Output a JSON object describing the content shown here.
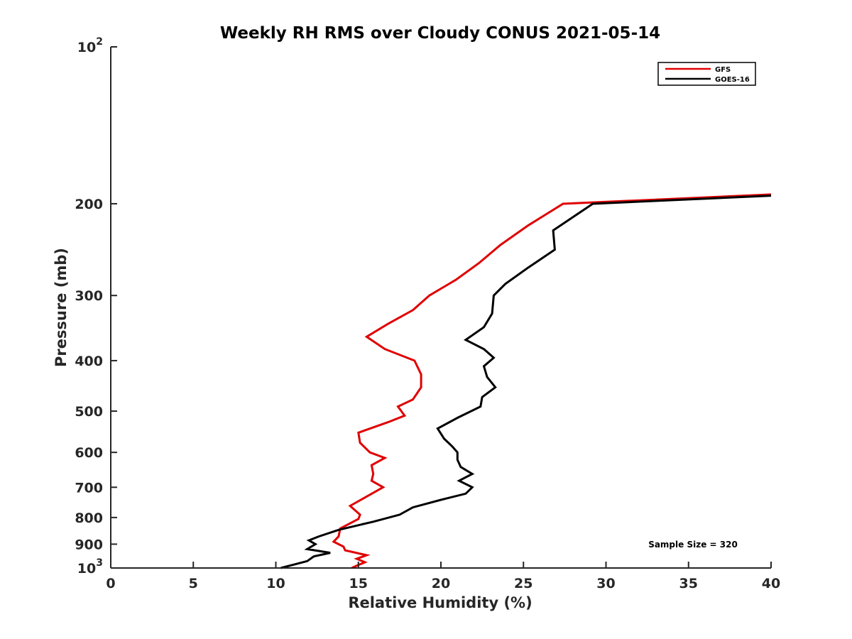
{
  "chart_data": {
    "type": "line",
    "title": "Weekly RH RMS over Cloudy CONUS 2021-05-14",
    "xlabel": "Relative Humidity (%)",
    "ylabel": "Pressure (mb)",
    "xlim": [
      0,
      40
    ],
    "ylim": [
      100,
      1000
    ],
    "y_scale": "log",
    "y_reversed": true,
    "grid": false,
    "legend_position": "top-right",
    "x_ticks": [
      {
        "value": 0,
        "label": "0"
      },
      {
        "value": 5,
        "label": "5"
      },
      {
        "value": 10,
        "label": "10"
      },
      {
        "value": 15,
        "label": "15"
      },
      {
        "value": 20,
        "label": "20"
      },
      {
        "value": 25,
        "label": "25"
      },
      {
        "value": 30,
        "label": "30"
      },
      {
        "value": 35,
        "label": "35"
      },
      {
        "value": 40,
        "label": "40"
      }
    ],
    "y_ticks": [
      {
        "value": 100,
        "base": "10",
        "exp": "2"
      },
      {
        "value": 200,
        "label": "200"
      },
      {
        "value": 300,
        "label": "300"
      },
      {
        "value": 400,
        "label": "400"
      },
      {
        "value": 500,
        "label": "500"
      },
      {
        "value": 600,
        "label": "600"
      },
      {
        "value": 700,
        "label": "700"
      },
      {
        "value": 800,
        "label": "800"
      },
      {
        "value": 900,
        "label": "900"
      },
      {
        "value": 1000,
        "base": "10",
        "exp": "3"
      }
    ],
    "annotation": "Sample Size = 320",
    "series": [
      {
        "name": "GFS",
        "color": "#e00000",
        "points": [
          [
            40.0,
            192
          ],
          [
            27.4,
            200
          ],
          [
            25.3,
            220
          ],
          [
            23.6,
            240
          ],
          [
            22.3,
            260
          ],
          [
            20.9,
            280
          ],
          [
            19.3,
            300
          ],
          [
            18.3,
            320
          ],
          [
            16.8,
            340
          ],
          [
            15.5,
            360
          ],
          [
            16.6,
            380
          ],
          [
            18.4,
            400
          ],
          [
            18.8,
            425
          ],
          [
            18.8,
            450
          ],
          [
            18.3,
            475
          ],
          [
            17.4,
            490
          ],
          [
            17.8,
            510
          ],
          [
            16.8,
            525
          ],
          [
            15.0,
            550
          ],
          [
            15.1,
            575
          ],
          [
            15.7,
            600
          ],
          [
            16.6,
            615
          ],
          [
            15.8,
            635
          ],
          [
            15.9,
            660
          ],
          [
            15.8,
            680
          ],
          [
            16.5,
            700
          ],
          [
            14.5,
            760
          ],
          [
            15.1,
            790
          ],
          [
            15.0,
            805
          ],
          [
            13.9,
            840
          ],
          [
            13.8,
            870
          ],
          [
            13.5,
            890
          ],
          [
            14.1,
            910
          ],
          [
            14.2,
            925
          ],
          [
            15.5,
            945
          ],
          [
            14.9,
            960
          ],
          [
            15.4,
            975
          ],
          [
            14.9,
            990
          ],
          [
            14.6,
            1000
          ]
        ]
      },
      {
        "name": "GOES-16",
        "color": "#000000",
        "points": [
          [
            40.0,
            193
          ],
          [
            29.2,
            200
          ],
          [
            26.8,
            225
          ],
          [
            26.9,
            245
          ],
          [
            25.3,
            265
          ],
          [
            23.9,
            285
          ],
          [
            23.2,
            300
          ],
          [
            23.1,
            325
          ],
          [
            22.6,
            345
          ],
          [
            21.5,
            365
          ],
          [
            22.6,
            380
          ],
          [
            23.2,
            395
          ],
          [
            22.6,
            410
          ],
          [
            22.8,
            430
          ],
          [
            23.3,
            450
          ],
          [
            22.5,
            470
          ],
          [
            22.4,
            490
          ],
          [
            21.0,
            515
          ],
          [
            19.8,
            540
          ],
          [
            20.2,
            565
          ],
          [
            20.7,
            585
          ],
          [
            21.0,
            600
          ],
          [
            21.0,
            620
          ],
          [
            21.2,
            640
          ],
          [
            21.9,
            660
          ],
          [
            21.1,
            680
          ],
          [
            21.9,
            700
          ],
          [
            21.5,
            720
          ],
          [
            20.0,
            740
          ],
          [
            18.3,
            765
          ],
          [
            17.5,
            790
          ],
          [
            15.9,
            815
          ],
          [
            13.8,
            845
          ],
          [
            12.6,
            870
          ],
          [
            12.0,
            885
          ],
          [
            12.4,
            900
          ],
          [
            11.9,
            920
          ],
          [
            13.3,
            935
          ],
          [
            12.3,
            950
          ],
          [
            11.9,
            970
          ],
          [
            10.3,
            1000
          ]
        ]
      }
    ]
  }
}
